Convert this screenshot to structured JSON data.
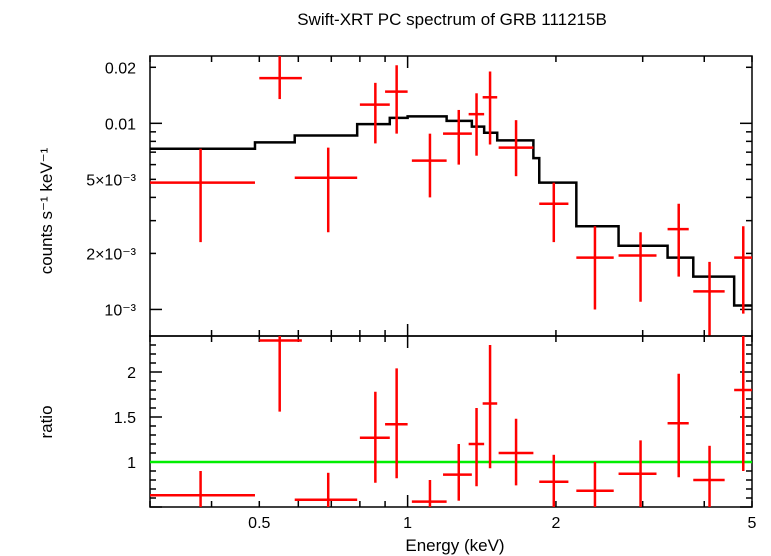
{
  "chart_data": [
    {
      "type": "scatter",
      "panel": "spectrum",
      "title": "Swift-XRT PC spectrum of GRB 111215B",
      "xlabel": "Energy (keV)",
      "ylabel": "counts s⁻¹ keV⁻¹",
      "xscale": "log",
      "yscale": "log",
      "xlim": [
        0.3,
        5
      ],
      "ylim": [
        0.00072,
        0.023
      ],
      "y_tick_labels": [
        {
          "value": 0.02,
          "label": "0.02"
        },
        {
          "value": 0.01,
          "label": "0.01"
        },
        {
          "value": 0.005,
          "label": "5×10⁻³"
        },
        {
          "value": 0.002,
          "label": "2×10⁻³"
        },
        {
          "value": 0.001,
          "label": "10⁻³"
        }
      ],
      "colors": {
        "data": "#ff0000",
        "model": "#000000"
      },
      "points": [
        {
          "x": 0.38,
          "xlo": 0.3,
          "xhi": 0.49,
          "y": 0.0048,
          "ylo": 0.0023,
          "yhi": 0.0073
        },
        {
          "x": 0.55,
          "xlo": 0.5,
          "xhi": 0.61,
          "y": 0.0175,
          "ylo": 0.0135,
          "yhi": 0.0245
        },
        {
          "x": 0.69,
          "xlo": 0.59,
          "xhi": 0.79,
          "y": 0.0051,
          "ylo": 0.0026,
          "yhi": 0.0074
        },
        {
          "x": 0.86,
          "xlo": 0.8,
          "xhi": 0.92,
          "y": 0.0126,
          "ylo": 0.0078,
          "yhi": 0.0165
        },
        {
          "x": 0.95,
          "xlo": 0.9,
          "xhi": 1.0,
          "y": 0.0148,
          "ylo": 0.0088,
          "yhi": 0.0205
        },
        {
          "x": 1.11,
          "xlo": 1.02,
          "xhi": 1.2,
          "y": 0.0063,
          "ylo": 0.004,
          "yhi": 0.0088
        },
        {
          "x": 1.27,
          "xlo": 1.18,
          "xhi": 1.35,
          "y": 0.0088,
          "ylo": 0.006,
          "yhi": 0.0118
        },
        {
          "x": 1.38,
          "xlo": 1.33,
          "xhi": 1.43,
          "y": 0.0112,
          "ylo": 0.0067,
          "yhi": 0.0145
        },
        {
          "x": 1.47,
          "xlo": 1.42,
          "xhi": 1.52,
          "y": 0.0138,
          "ylo": 0.0077,
          "yhi": 0.019
        },
        {
          "x": 1.66,
          "xlo": 1.53,
          "xhi": 1.8,
          "y": 0.0074,
          "ylo": 0.0052,
          "yhi": 0.0104
        },
        {
          "x": 1.98,
          "xlo": 1.85,
          "xhi": 2.12,
          "y": 0.0037,
          "ylo": 0.0023,
          "yhi": 0.0048
        },
        {
          "x": 2.4,
          "xlo": 2.2,
          "xhi": 2.62,
          "y": 0.0019,
          "ylo": 0.001,
          "yhi": 0.0028
        },
        {
          "x": 2.97,
          "xlo": 2.68,
          "xhi": 3.2,
          "y": 0.00195,
          "ylo": 0.0011,
          "yhi": 0.0026
        },
        {
          "x": 3.55,
          "xlo": 3.37,
          "xhi": 3.72,
          "y": 0.0027,
          "ylo": 0.0015,
          "yhi": 0.0037
        },
        {
          "x": 4.1,
          "xlo": 3.8,
          "xhi": 4.4,
          "y": 0.00125,
          "ylo": 0.00072,
          "yhi": 0.0018
        },
        {
          "x": 4.8,
          "xlo": 4.6,
          "xhi": 5.0,
          "y": 0.0019,
          "ylo": 0.00095,
          "yhi": 0.0028
        }
      ],
      "model": [
        {
          "x": 0.3,
          "y": 0.0073
        },
        {
          "x": 0.49,
          "y": 0.0079
        },
        {
          "x": 0.59,
          "y": 0.0086
        },
        {
          "x": 0.79,
          "y": 0.0099
        },
        {
          "x": 0.92,
          "y": 0.0107
        },
        {
          "x": 1.0,
          "y": 0.0109
        },
        {
          "x": 1.2,
          "y": 0.0103
        },
        {
          "x": 1.35,
          "y": 0.0096
        },
        {
          "x": 1.43,
          "y": 0.0089
        },
        {
          "x": 1.52,
          "y": 0.0081
        },
        {
          "x": 1.8,
          "y": 0.0065
        },
        {
          "x": 1.85,
          "y": 0.0048
        },
        {
          "x": 2.2,
          "y": 0.0028
        },
        {
          "x": 2.68,
          "y": 0.0022
        },
        {
          "x": 3.37,
          "y": 0.0019
        },
        {
          "x": 3.8,
          "y": 0.0015
        },
        {
          "x": 4.6,
          "y": 0.00105
        },
        {
          "x": 5.0,
          "y": 0.00105
        }
      ]
    },
    {
      "type": "scatter",
      "panel": "ratio",
      "xlabel": "Energy (keV)",
      "ylabel": "ratio",
      "xscale": "log",
      "yscale": "linear",
      "xlim": [
        0.3,
        5
      ],
      "ylim": [
        0.5,
        2.4
      ],
      "x_tick_labels": [
        {
          "value": 0.5,
          "label": "0.5"
        },
        {
          "value": 1,
          "label": "1"
        },
        {
          "value": 2,
          "label": "2"
        },
        {
          "value": 5,
          "label": "5"
        }
      ],
      "y_tick_labels": [
        {
          "value": 2,
          "label": "2"
        },
        {
          "value": 1.5,
          "label": "1.5"
        },
        {
          "value": 1,
          "label": "1"
        }
      ],
      "reference_line": {
        "y": 1,
        "color": "#00ee00"
      },
      "colors": {
        "data": "#ff0000"
      },
      "points": [
        {
          "x": 0.38,
          "xlo": 0.3,
          "xhi": 0.49,
          "y": 0.63,
          "ylo": 0.5,
          "yhi": 0.9
        },
        {
          "x": 0.55,
          "xlo": 0.5,
          "xhi": 0.61,
          "y": 2.35,
          "ylo": 1.56,
          "yhi": 2.4
        },
        {
          "x": 0.69,
          "xlo": 0.59,
          "xhi": 0.79,
          "y": 0.58,
          "ylo": 0.5,
          "yhi": 0.88
        },
        {
          "x": 0.86,
          "xlo": 0.8,
          "xhi": 0.92,
          "y": 1.27,
          "ylo": 0.77,
          "yhi": 1.78
        },
        {
          "x": 0.95,
          "xlo": 0.9,
          "xhi": 1.0,
          "y": 1.42,
          "ylo": 0.82,
          "yhi": 2.04
        },
        {
          "x": 1.11,
          "xlo": 1.02,
          "xhi": 1.2,
          "y": 0.56,
          "ylo": 0.5,
          "yhi": 0.8
        },
        {
          "x": 1.27,
          "xlo": 1.18,
          "xhi": 1.35,
          "y": 0.86,
          "ylo": 0.57,
          "yhi": 1.2
        },
        {
          "x": 1.38,
          "xlo": 1.33,
          "xhi": 1.43,
          "y": 1.2,
          "ylo": 0.73,
          "yhi": 1.6
        },
        {
          "x": 1.47,
          "xlo": 1.42,
          "xhi": 1.52,
          "y": 1.65,
          "ylo": 0.93,
          "yhi": 2.3
        },
        {
          "x": 1.66,
          "xlo": 1.53,
          "xhi": 1.8,
          "y": 1.1,
          "ylo": 0.74,
          "yhi": 1.48
        },
        {
          "x": 1.98,
          "xlo": 1.85,
          "xhi": 2.12,
          "y": 0.78,
          "ylo": 0.5,
          "yhi": 1.08
        },
        {
          "x": 2.4,
          "xlo": 2.2,
          "xhi": 2.62,
          "y": 0.68,
          "ylo": 0.5,
          "yhi": 1.0
        },
        {
          "x": 2.97,
          "xlo": 2.68,
          "xhi": 3.2,
          "y": 0.87,
          "ylo": 0.5,
          "yhi": 1.24
        },
        {
          "x": 3.55,
          "xlo": 3.37,
          "xhi": 3.72,
          "y": 1.43,
          "ylo": 0.83,
          "yhi": 1.98
        },
        {
          "x": 4.1,
          "xlo": 3.8,
          "xhi": 4.4,
          "y": 0.8,
          "ylo": 0.5,
          "yhi": 1.18
        },
        {
          "x": 4.8,
          "xlo": 4.6,
          "xhi": 5.0,
          "y": 1.8,
          "ylo": 0.9,
          "yhi": 2.4
        }
      ]
    }
  ]
}
